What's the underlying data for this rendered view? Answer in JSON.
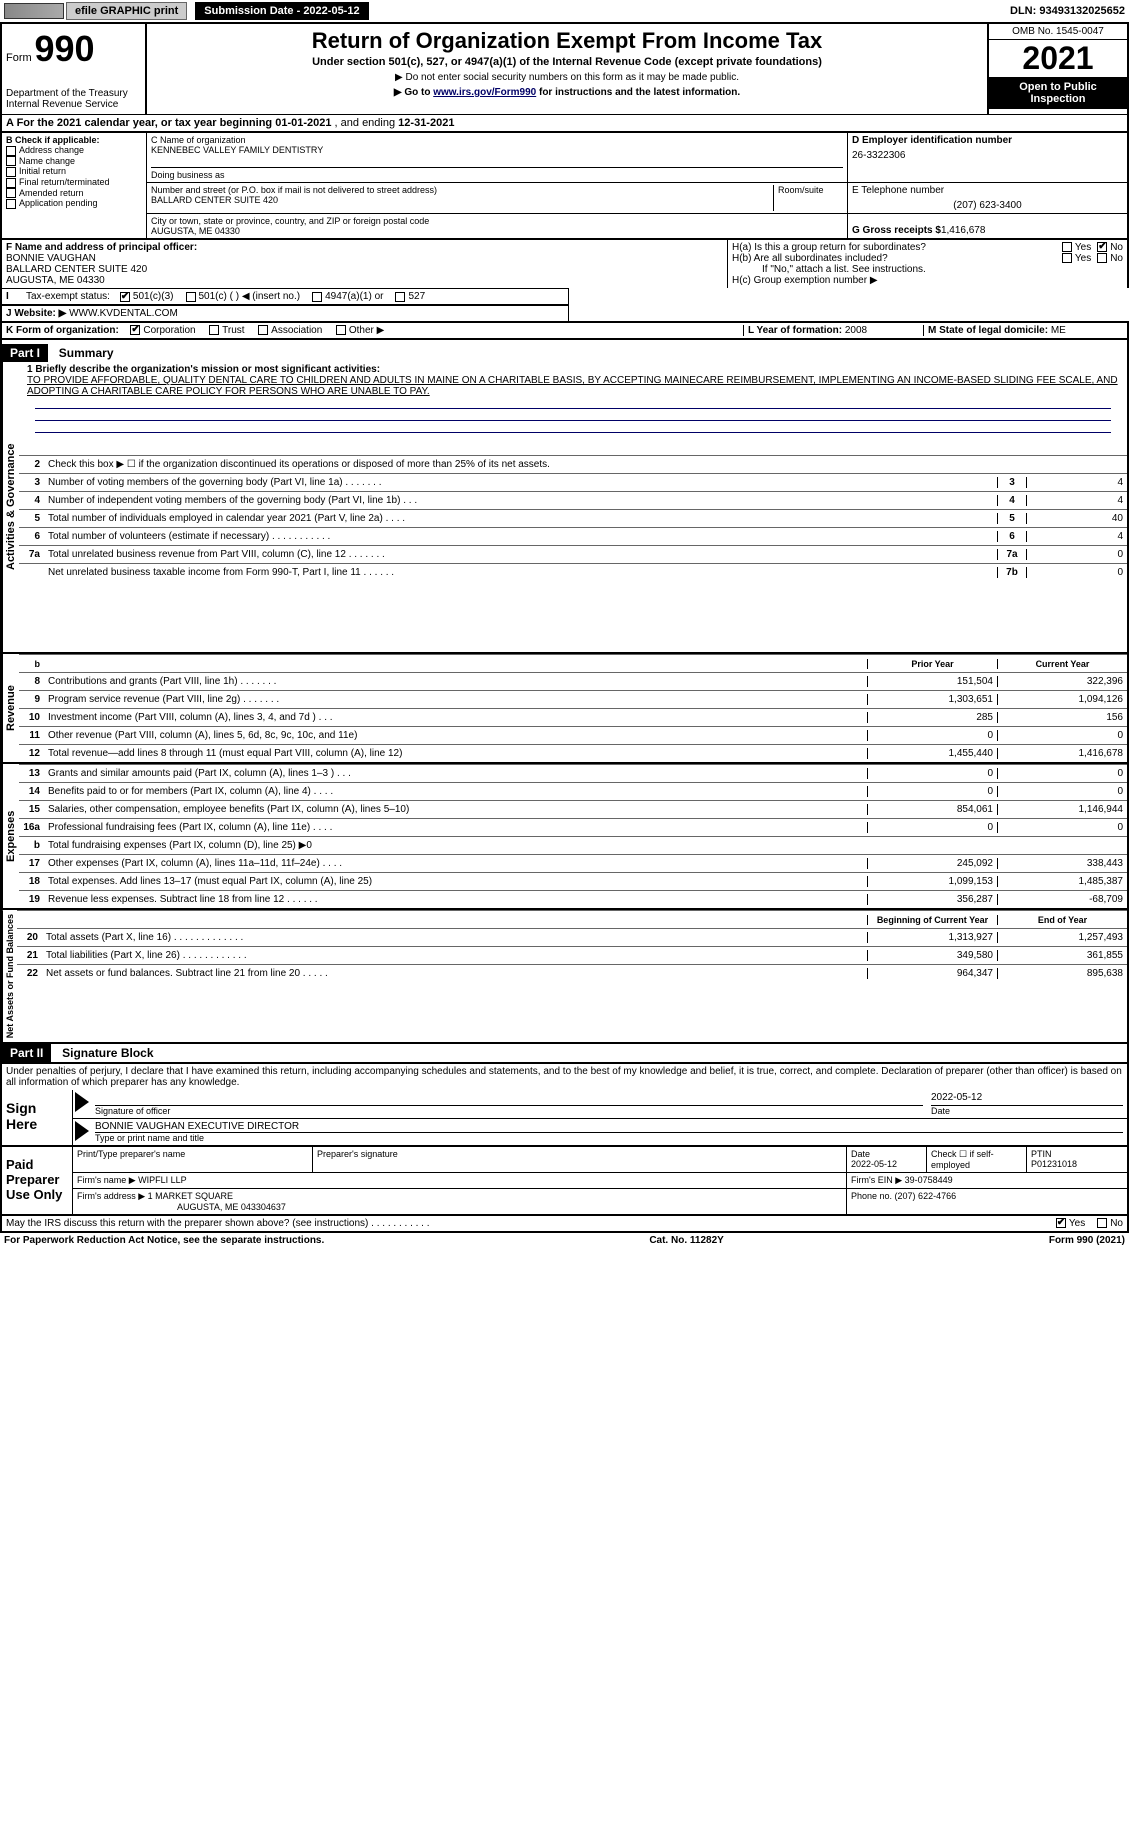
{
  "topbar": {
    "efile": "efile GRAPHIC print",
    "submission": "Submission Date - 2022-05-12",
    "dln": "DLN: 93493132025652"
  },
  "header": {
    "form": "Form",
    "number": "990",
    "dept": "Department of the Treasury",
    "irs": "Internal Revenue Service",
    "title": "Return of Organization Exempt From Income Tax",
    "subtitle": "Under section 501(c), 527, or 4947(a)(1) of the Internal Revenue Code (except private foundations)",
    "note1": "▶ Do not enter social security numbers on this form as it may be made public.",
    "note2": "▶ Go to ",
    "note2link": "www.irs.gov/Form990",
    "note2b": " for instructions and the latest information.",
    "omb": "OMB No. 1545-0047",
    "year": "2021",
    "openpub": "Open to Public Inspection"
  },
  "A": {
    "label": "A For the 2021 calendar year, or tax year beginning ",
    "begin": "01-01-2021",
    "mid": " , and ending ",
    "end": "12-31-2021"
  },
  "B": {
    "label": "B Check if applicable:",
    "items": [
      "Address change",
      "Name change",
      "Initial return",
      "Final return/terminated",
      "Amended return",
      "Application pending"
    ]
  },
  "C": {
    "nameLabel": "C Name of organization",
    "name": "KENNEBEC VALLEY FAMILY DENTISTRY",
    "dbaLabel": "Doing business as",
    "dba": "",
    "addrLabel": "Number and street (or P.O. box if mail is not delivered to street address)",
    "room": "Room/suite",
    "addr": "BALLARD CENTER SUITE 420",
    "cityLabel": "City or town, state or province, country, and ZIP or foreign postal code",
    "city": "AUGUSTA, ME  04330"
  },
  "D": {
    "label": "D Employer identification number",
    "val": "26-3322306"
  },
  "E": {
    "label": "E Telephone number",
    "val": "(207) 623-3400"
  },
  "G": {
    "label": "G Gross receipts $ ",
    "val": "1,416,678"
  },
  "F": {
    "label": "F  Name and address of principal officer:",
    "name": "BONNIE VAUGHAN",
    "addr1": "BALLARD CENTER SUITE 420",
    "addr2": "AUGUSTA, ME  04330"
  },
  "H": {
    "a": "H(a)  Is this a group return for subordinates?",
    "b": "H(b)  Are all subordinates included?",
    "bnote": "If \"No,\" attach a list. See instructions.",
    "c": "H(c)  Group exemption number ▶",
    "yes": "Yes",
    "no": "No"
  },
  "I": {
    "label": "I    Tax-exempt status:",
    "opts": [
      "501(c)(3)",
      "501(c) (  ) ◀ (insert no.)",
      "4947(a)(1) or",
      "527"
    ]
  },
  "J": {
    "label": "J    Website: ▶",
    "val": "  WWW.KVDENTAL.COM"
  },
  "K": {
    "label": "K Form of organization:",
    "opts": [
      "Corporation",
      "Trust",
      "Association",
      "Other ▶"
    ]
  },
  "L": {
    "label": "L Year of formation: ",
    "val": "2008"
  },
  "M": {
    "label": "M State of legal domicile: ",
    "val": "ME"
  },
  "part1": {
    "hdr": "Part I",
    "title": "Summary",
    "mission_label": "1  Briefly describe the organization's mission or most significant activities:",
    "mission": "TO PROVIDE AFFORDABLE, QUALITY DENTAL CARE TO CHILDREN AND ADULTS IN MAINE ON A CHARITABLE BASIS, BY ACCEPTING MAINECARE REIMBURSEMENT, IMPLEMENTING AN INCOME-BASED SLIDING FEE SCALE, AND ADOPTING A CHARITABLE CARE POLICY FOR PERSONS WHO ARE UNABLE TO PAY.",
    "line2": "Check this box ▶ ☐  if the organization discontinued its operations or disposed of more than 25% of its net assets.",
    "sections": {
      "gov": "Activities & Governance",
      "rev": "Revenue",
      "exp": "Expenses",
      "net": "Net Assets or Fund Balances"
    },
    "py": "Prior Year",
    "cy": "Current Year",
    "boy": "Beginning of Current Year",
    "eoy": "End of Year",
    "lines_gov": [
      {
        "n": "3",
        "t": "Number of voting members of the governing body (Part VI, line 1a)   .    .    .    .    .    .    .",
        "c": "3",
        "v": "4"
      },
      {
        "n": "4",
        "t": "Number of independent voting members of the governing body (Part VI, line 1b)    .    .    .",
        "c": "4",
        "v": "4"
      },
      {
        "n": "5",
        "t": "Total number of individuals employed in calendar year 2021 (Part V, line 2a)    .    .    .    .",
        "c": "5",
        "v": "40"
      },
      {
        "n": "6",
        "t": "Total number of volunteers (estimate if necessary)    .    .    .    .    .    .    .    .    .    .    .",
        "c": "6",
        "v": "4"
      },
      {
        "n": "7a",
        "t": "Total unrelated business revenue from Part VIII, column (C), line 12   .    .    .    .    .    .    .",
        "c": "7a",
        "v": "0"
      },
      {
        "n": "",
        "t": "Net unrelated business taxable income from Form 990-T, Part I, line 11    .    .    .    .    .    .",
        "c": "7b",
        "v": "0"
      }
    ],
    "lines_rev": [
      {
        "n": "8",
        "t": "Contributions and grants (Part VIII, line 1h)    .    .    .    .    .    .    .",
        "py": "151,504",
        "cy": "322,396"
      },
      {
        "n": "9",
        "t": "Program service revenue (Part VIII, line 2g)    .    .    .    .    .    .    .",
        "py": "1,303,651",
        "cy": "1,094,126"
      },
      {
        "n": "10",
        "t": "Investment income (Part VIII, column (A), lines 3, 4, and 7d )    .    .    .",
        "py": "285",
        "cy": "156"
      },
      {
        "n": "11",
        "t": "Other revenue (Part VIII, column (A), lines 5, 6d, 8c, 9c, 10c, and 11e)",
        "py": "0",
        "cy": "0"
      },
      {
        "n": "12",
        "t": "Total revenue—add lines 8 through 11 (must equal Part VIII, column (A), line 12)",
        "py": "1,455,440",
        "cy": "1,416,678"
      }
    ],
    "lines_exp": [
      {
        "n": "13",
        "t": "Grants and similar amounts paid (Part IX, column (A), lines 1–3 )   .    .    .",
        "py": "0",
        "cy": "0"
      },
      {
        "n": "14",
        "t": "Benefits paid to or for members (Part IX, column (A), line 4)   .    .    .    .",
        "py": "0",
        "cy": "0"
      },
      {
        "n": "15",
        "t": "Salaries, other compensation, employee benefits (Part IX, column (A), lines 5–10)",
        "py": "854,061",
        "cy": "1,146,944"
      },
      {
        "n": "16a",
        "t": "Professional fundraising fees (Part IX, column (A), line 11e)   .    .    .    .",
        "py": "0",
        "cy": "0"
      },
      {
        "n": "b",
        "t": "Total fundraising expenses (Part IX, column (D), line 25) ▶0",
        "py": "",
        "cy": "",
        "shaded": true
      },
      {
        "n": "17",
        "t": "Other expenses (Part IX, column (A), lines 11a–11d, 11f–24e)    .    .    .    .",
        "py": "245,092",
        "cy": "338,443"
      },
      {
        "n": "18",
        "t": "Total expenses. Add lines 13–17 (must equal Part IX, column (A), line 25)",
        "py": "1,099,153",
        "cy": "1,485,387"
      },
      {
        "n": "19",
        "t": "Revenue less expenses. Subtract line 18 from line 12   .    .    .    .    .    .",
        "py": "356,287",
        "cy": "-68,709"
      }
    ],
    "lines_net": [
      {
        "n": "20",
        "t": "Total assets (Part X, line 16)   .    .    .    .    .    .    .    .    .    .    .    .    .",
        "py": "1,313,927",
        "cy": "1,257,493"
      },
      {
        "n": "21",
        "t": "Total liabilities (Part X, line 26)   .    .    .    .    .    .    .    .    .    .    .    .",
        "py": "349,580",
        "cy": "361,855"
      },
      {
        "n": "22",
        "t": "Net assets or fund balances. Subtract line 21 from line 20    .    .    .    .    .",
        "py": "964,347",
        "cy": "895,638"
      }
    ]
  },
  "part2": {
    "hdr": "Part II",
    "title": "Signature Block",
    "penalty": "Under penalties of perjury, I declare that I have examined this return, including accompanying schedules and statements, and to the best of my knowledge and belief, it is true, correct, and complete. Declaration of preparer (other than officer) is based on all information of which preparer has any knowledge.",
    "sign": "Sign Here",
    "sigoff": "Signature of officer",
    "sigdate": "2022-05-12",
    "datelbl": "Date",
    "officer": "BONNIE VAUGHAN  EXECUTIVE DIRECTOR",
    "typelbl": "Type or print name and title",
    "paid": "Paid Preparer Use Only",
    "prepname_lbl": "Print/Type preparer's name",
    "prepsig_lbl": "Preparer's signature",
    "prepdate_lbl": "Date",
    "prepdate": "2022-05-12",
    "checkif": "Check ☐ if self-employed",
    "ptin_lbl": "PTIN",
    "ptin": "P01231018",
    "firmname_lbl": "Firm's name    ▶",
    "firmname": "WIPFLI LLP",
    "ein_lbl": "Firm's EIN ▶ ",
    "ein": "39-0758449",
    "firmaddr_lbl": "Firm's address ▶",
    "firmaddr1": "1 MARKET SQUARE",
    "firmaddr2": "AUGUSTA, ME  043304637",
    "phone_lbl": "Phone no. ",
    "phone": "(207) 622-4766",
    "discuss": "May the IRS discuss this return with the preparer shown above? (see instructions)    .    .    .    .    .    .    .    .    .    .    .",
    "yes": "Yes",
    "no": "No"
  },
  "footer": {
    "pra": "For Paperwork Reduction Act Notice, see the separate instructions.",
    "cat": "Cat. No. 11282Y",
    "form": "Form 990 (2021)"
  }
}
